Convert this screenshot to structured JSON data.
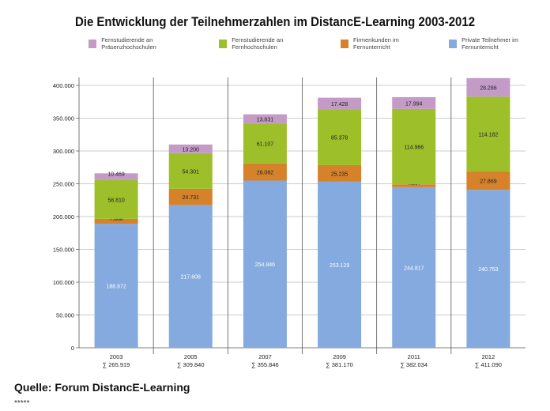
{
  "chart_data": {
    "type": "bar",
    "stacked": true,
    "title": "Die Entwicklung der Teilnehmerzahlen im DistancE-Learning 2003-2012",
    "categories": [
      "2003",
      "2005",
      "2007",
      "2009",
      "2011",
      "2012"
    ],
    "category_sums": [
      "∑ 265.919",
      "∑ 309.840",
      "∑ 355.846",
      "∑ 381.170",
      "∑ 382.034",
      "∑ 411.090"
    ],
    "series": [
      {
        "name": "Private Teilnehmer im Fernunterricht",
        "color": "#84aadf",
        "values": [
          188972,
          217608,
          254846,
          253129,
          244817,
          240753
        ],
        "labels": [
          "188.972",
          "217.608",
          "254.846",
          "253.129",
          "244.817",
          "240.753"
        ]
      },
      {
        "name": "Firmenkunden im Fernunterricht",
        "color": "#d5822a",
        "values": [
          7668,
          24731,
          26062,
          25235,
          4257,
          27869
        ],
        "labels": [
          "7.668",
          "24.731",
          "26.062",
          "25.235",
          "4.257",
          "27.869"
        ]
      },
      {
        "name": "Fernstudierende an Fernhochschulen",
        "color": "#9dbf2a",
        "values": [
          58810,
          54301,
          61107,
          85378,
          114966,
          114182
        ],
        "labels": [
          "58.810",
          "54.301",
          "61.107",
          "85.378",
          "114.966",
          "114.182"
        ]
      },
      {
        "name": "Fernstudierende an Präsenzhochschulen",
        "color": "#c49ac6",
        "values": [
          10469,
          13200,
          13831,
          17428,
          17994,
          28286
        ],
        "labels": [
          "10.469",
          "13.200",
          "13.831",
          "17.428",
          "17.994",
          "28.286"
        ]
      }
    ],
    "legend_order": [
      3,
      2,
      1,
      0
    ],
    "ylim": [
      0,
      400000
    ],
    "yticks": [
      0,
      50000,
      100000,
      150000,
      200000,
      250000,
      300000,
      350000,
      400000
    ],
    "ytick_labels": [
      "0",
      "50.000",
      "100.000",
      "150.000",
      "200.000",
      "250.000",
      "300.000",
      "350.000",
      "400.000"
    ],
    "grid": true,
    "legend_placement": "top"
  },
  "source": "Quelle: Forum DistancE-Learning",
  "footer": "*****"
}
